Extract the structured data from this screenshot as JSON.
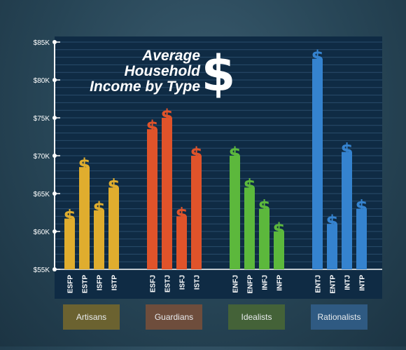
{
  "chart_data": {
    "type": "bar",
    "title_lines": [
      "Average",
      "Household",
      "Income by Type"
    ],
    "title_symbol": "$",
    "ylim": [
      55,
      85
    ],
    "yticks": [
      "$55K",
      "$60K",
      "$65K",
      "$70K",
      "$75K",
      "$80K",
      "$85K"
    ],
    "ytick_values": [
      55,
      60,
      65,
      70,
      75,
      80,
      85
    ],
    "bar_symbol": "$",
    "groups": [
      {
        "name": "Artisans",
        "color": "#e0ad2e",
        "label_bg": "#6b6230",
        "categories": [
          "ESFP",
          "ESTP",
          "ISFP",
          "ISTP"
        ],
        "values": [
          61.7,
          68.5,
          62.8,
          65.8
        ]
      },
      {
        "name": "Guardians",
        "color": "#e0532a",
        "label_bg": "#6e4d3c",
        "categories": [
          "ESFJ",
          "ESTJ",
          "ISFJ",
          "ISTJ"
        ],
        "values": [
          73.5,
          75.0,
          62.0,
          70.0
        ]
      },
      {
        "name": "Idealists",
        "color": "#5cb83c",
        "label_bg": "#446238",
        "categories": [
          "ENFJ",
          "ENFP",
          "INFJ",
          "INFP"
        ],
        "values": [
          70.0,
          65.8,
          63.0,
          60.0
        ]
      },
      {
        "name": "Rationalists",
        "color": "#3583cf",
        "label_bg": "#2f5a82",
        "categories": [
          "ENTJ",
          "ENTP",
          "INTJ",
          "INTP"
        ],
        "values": [
          82.8,
          61.0,
          70.5,
          63.0
        ]
      }
    ]
  }
}
